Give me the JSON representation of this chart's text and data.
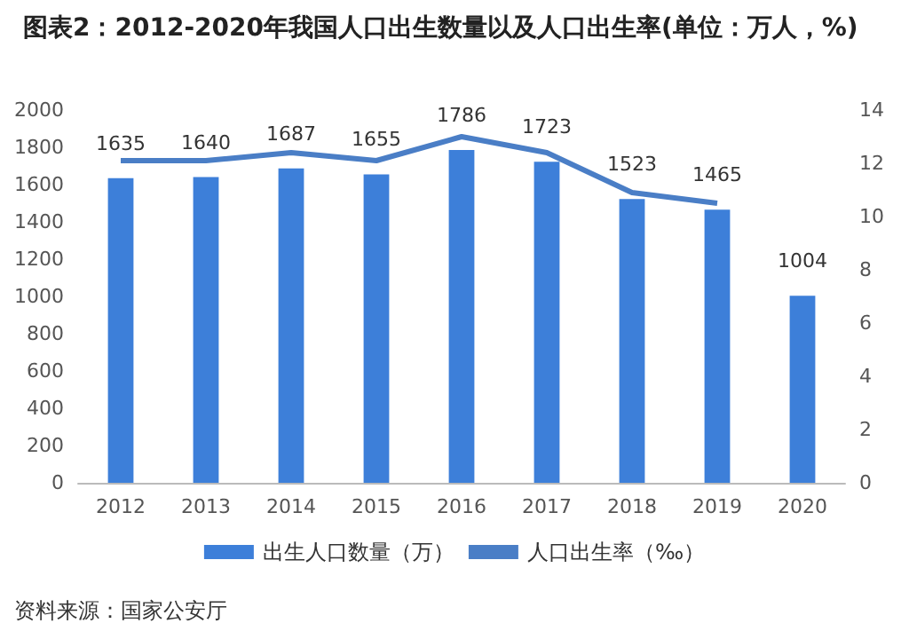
{
  "chart_data": {
    "type": "bar",
    "title": "图表2：2012-2020年我国人口出生数量以及人口出生率(单位：万人，%)",
    "categories": [
      "2012",
      "2013",
      "2014",
      "2015",
      "2016",
      "2017",
      "2018",
      "2019",
      "2020"
    ],
    "series": [
      {
        "name": "出生人口数量（万）",
        "color": "#3d7fd9",
        "values": [
          1635,
          1640,
          1687,
          1655,
          1786,
          1723,
          1523,
          1465,
          1004
        ],
        "value_labels": [
          "1635",
          "1640",
          "1687",
          "1655",
          "1786",
          "1723",
          "1523",
          "1465",
          "1004"
        ]
      },
      {
        "name": "人口出生率（‰）",
        "type": "line",
        "axis": "y2",
        "color": "#4a7ec6",
        "values": [
          12.1,
          12.1,
          12.4,
          12.1,
          13.0,
          12.4,
          10.9,
          10.5,
          null
        ]
      }
    ],
    "ylim": [
      0,
      2000
    ],
    "yticks": [
      0,
      200,
      400,
      600,
      800,
      1000,
      1200,
      1400,
      1600,
      1800,
      2000
    ],
    "y2lim": [
      0,
      14
    ],
    "y2ticks": [
      0,
      2,
      4,
      6,
      8,
      10,
      12,
      14
    ],
    "grid": false,
    "legend": "bottom",
    "marker": "none",
    "annotations": [
      "资料来源：国家公安厅"
    ]
  }
}
